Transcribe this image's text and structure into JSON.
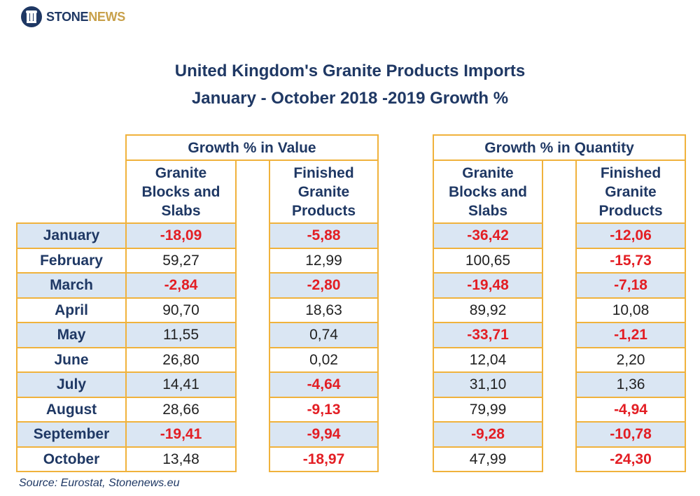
{
  "logo": {
    "part1": "STONE",
    "part2": "NEWS",
    "icon": "column-building-icon"
  },
  "title_line1": "United Kingdom's Granite Products Imports",
  "title_line2": "January - October 2018 -2019 Growth %",
  "source": "Source: Eurostat, Stonenews.eu",
  "colors": {
    "border": "#f0b23c",
    "shade": "#dae6f3",
    "negative": "#e31e24",
    "navy": "#1f3864"
  },
  "chart_data": {
    "type": "table",
    "groups": [
      {
        "label": "Growth % in Value",
        "columns": [
          "Granite Blocks and Slabs",
          "Finished Granite Products"
        ]
      },
      {
        "label": "Growth % in Quantity",
        "columns": [
          "Granite Blocks and Slabs",
          "Finished Granite Products"
        ]
      }
    ],
    "column_headers": [
      [
        "Granite",
        "Blocks and",
        "Slabs"
      ],
      [
        "Finished",
        "Granite",
        "Products"
      ],
      [
        "Granite",
        "Blocks and",
        "Slabs"
      ],
      [
        "Finished",
        "Granite",
        "Products"
      ]
    ],
    "rows": [
      {
        "month": "January",
        "values": [
          "-18,09",
          "-5,88",
          "-36,42",
          "-12,06"
        ]
      },
      {
        "month": "February",
        "values": [
          "59,27",
          "12,99",
          "100,65",
          "-15,73"
        ]
      },
      {
        "month": "March",
        "values": [
          "-2,84",
          "-2,80",
          "-19,48",
          "-7,18"
        ]
      },
      {
        "month": "April",
        "values": [
          "90,70",
          "18,63",
          "89,92",
          "10,08"
        ]
      },
      {
        "month": "May",
        "values": [
          "11,55",
          "0,74",
          "-33,71",
          "-1,21"
        ]
      },
      {
        "month": "June",
        "values": [
          "26,80",
          "0,02",
          "12,04",
          "2,20"
        ]
      },
      {
        "month": "July",
        "values": [
          "14,41",
          "-4,64",
          "31,10",
          "1,36"
        ]
      },
      {
        "month": "August",
        "values": [
          "28,66",
          "-9,13",
          "79,99",
          "-4,94"
        ]
      },
      {
        "month": "September",
        "values": [
          "-19,41",
          "-9,94",
          "-9,28",
          "-10,78"
        ]
      },
      {
        "month": "October",
        "values": [
          "13,48",
          "-18,97",
          "47,99",
          "-24,30"
        ]
      }
    ]
  }
}
